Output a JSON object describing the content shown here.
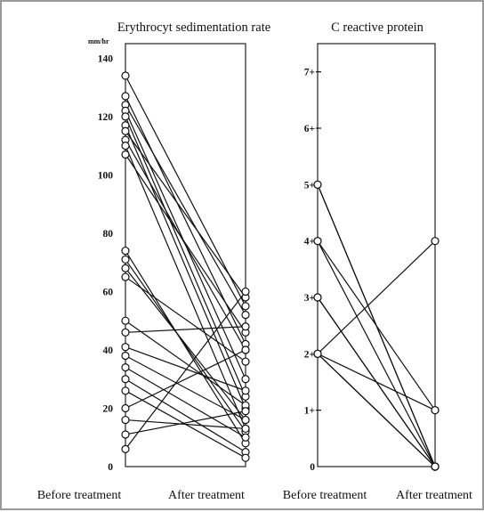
{
  "chart_data": [
    {
      "type": "line",
      "title": "Erythrocyt sedimentation rate",
      "ylabel": "mm/hr",
      "categories": [
        "Before treatment",
        "After treatment"
      ],
      "ylim": [
        0,
        145
      ],
      "yticks": [
        "0",
        "20",
        "40",
        "60",
        "80",
        "100",
        "120",
        "140"
      ],
      "pairs": [
        [
          134,
          55
        ],
        [
          127,
          42
        ],
        [
          124,
          52
        ],
        [
          122,
          30
        ],
        [
          120,
          24
        ],
        [
          117,
          20
        ],
        [
          115,
          58
        ],
        [
          112,
          40
        ],
        [
          110,
          13
        ],
        [
          107,
          46
        ],
        [
          74,
          8
        ],
        [
          71,
          12
        ],
        [
          68,
          16
        ],
        [
          65,
          36
        ],
        [
          50,
          21
        ],
        [
          46,
          48
        ],
        [
          41,
          26
        ],
        [
          38,
          16
        ],
        [
          34,
          10
        ],
        [
          30,
          5
        ],
        [
          26,
          3
        ],
        [
          20,
          40
        ],
        [
          16,
          13
        ],
        [
          11,
          19
        ],
        [
          6,
          60
        ]
      ]
    },
    {
      "type": "line",
      "title": "C reactive protein",
      "categories": [
        "Before treatment",
        "After treatment"
      ],
      "ylim": [
        0,
        7.5
      ],
      "yticks": [
        "0",
        "1+",
        "2+",
        "3+",
        "4+",
        "5+",
        "6+",
        "7+"
      ],
      "pairs": [
        [
          5,
          0
        ],
        [
          5,
          0
        ],
        [
          4,
          0
        ],
        [
          4,
          1
        ],
        [
          3,
          0
        ],
        [
          3,
          0
        ],
        [
          2,
          4
        ],
        [
          2,
          1
        ],
        [
          2,
          0
        ],
        [
          2,
          0
        ]
      ]
    }
  ]
}
